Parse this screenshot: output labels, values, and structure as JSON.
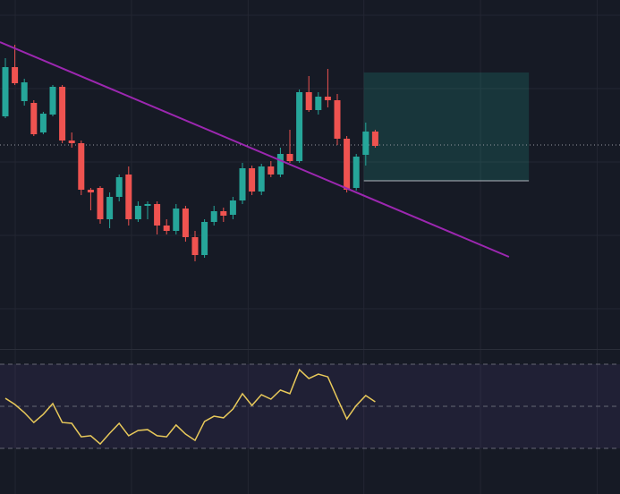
{
  "chart_data": [
    {
      "type": "candlestick",
      "up_color": "#26a69a",
      "down_color": "#ef5350",
      "grid": true,
      "x": [
        0,
        1,
        2,
        3,
        4,
        5,
        6,
        7,
        8,
        9,
        10,
        11,
        12,
        13,
        14,
        15,
        16,
        17,
        18,
        19,
        20,
        21,
        22,
        23,
        24,
        25,
        26,
        27,
        28,
        29,
        30,
        31,
        32,
        33,
        34,
        35,
        36,
        37,
        38,
        39
      ],
      "open": [
        260,
        315,
        277,
        275,
        242,
        262,
        293,
        233,
        230,
        178,
        180,
        145,
        170,
        195,
        145,
        160,
        162,
        138,
        132,
        157,
        125,
        105,
        142,
        154,
        150,
        166,
        202,
        176,
        204,
        195,
        218,
        210,
        287,
        267,
        282,
        278,
        235,
        180,
        217,
        243
      ],
      "close": [
        315,
        297,
        298,
        240,
        263,
        293,
        233,
        230,
        178,
        175,
        145,
        170,
        192,
        145,
        160,
        162,
        138,
        132,
        157,
        125,
        105,
        142,
        154,
        149,
        166,
        202,
        176,
        204,
        195,
        218,
        210,
        287,
        267,
        282,
        278,
        235,
        178,
        215,
        243,
        227
      ],
      "high": [
        325,
        340,
        302,
        278,
        265,
        295,
        295,
        242,
        233,
        180,
        182,
        175,
        195,
        204,
        165,
        165,
        165,
        145,
        162,
        160,
        132,
        145,
        160,
        158,
        170,
        208,
        205,
        207,
        210,
        225,
        245,
        290,
        305,
        287,
        313,
        285,
        238,
        218,
        253,
        245
      ],
      "low": [
        258,
        295,
        272,
        238,
        240,
        260,
        230,
        225,
        172,
        155,
        140,
        135,
        165,
        138,
        142,
        145,
        128,
        128,
        128,
        120,
        98,
        102,
        138,
        142,
        145,
        162,
        172,
        172,
        192,
        192,
        208,
        208,
        265,
        262,
        270,
        228,
        175,
        177,
        205,
        225
      ],
      "xlim": [
        -0.566,
        64.81
      ],
      "ylim": [
        0,
        390
      ],
      "xticks": [
        1.04,
        13.3,
        25.6,
        37.8,
        50.1,
        62.4
      ],
      "yticks": [
        45,
        127,
        209,
        291,
        373
      ],
      "trendline": {
        "x": [
          -0.57,
          53.1
        ],
        "values": [
          343,
          103
        ],
        "color": "#9c27b0"
      },
      "price_line": {
        "value": 228,
        "color": "#9598a1"
      },
      "position_box": {
        "x": [
          37.8,
          55.2
        ],
        "values": [
          188,
          309
        ],
        "color": "#22ab94"
      }
    },
    {
      "type": "line",
      "color": "#e8c95a",
      "x": [
        0,
        1,
        2,
        3,
        4,
        5,
        6,
        7,
        8,
        9,
        10,
        11,
        12,
        13,
        14,
        15,
        16,
        17,
        18,
        19,
        20,
        21,
        22,
        23,
        24,
        25,
        26,
        27,
        28,
        29,
        30,
        31,
        32,
        33,
        34,
        35,
        36,
        37,
        38,
        39
      ],
      "values": [
        53.8,
        50.9,
        47.0,
        42.3,
        46.2,
        51.3,
        42.3,
        41.9,
        35.5,
        36.0,
        32.1,
        37.2,
        41.9,
        36.0,
        38.5,
        38.9,
        36.0,
        35.5,
        41.1,
        36.8,
        33.8,
        42.8,
        45.3,
        44.5,
        48.7,
        56.0,
        50.4,
        55.5,
        53.4,
        57.7,
        56.0,
        67.4,
        63.2,
        65.3,
        64.0,
        53.8,
        44.0,
        50.4,
        55.1,
        52.1
      ],
      "xlim": [
        -0.566,
        64.81
      ],
      "ylim": [
        8.3,
        76.8
      ],
      "yticks": [
        30,
        50,
        70
      ],
      "band_color": "#7e57c2"
    }
  ]
}
